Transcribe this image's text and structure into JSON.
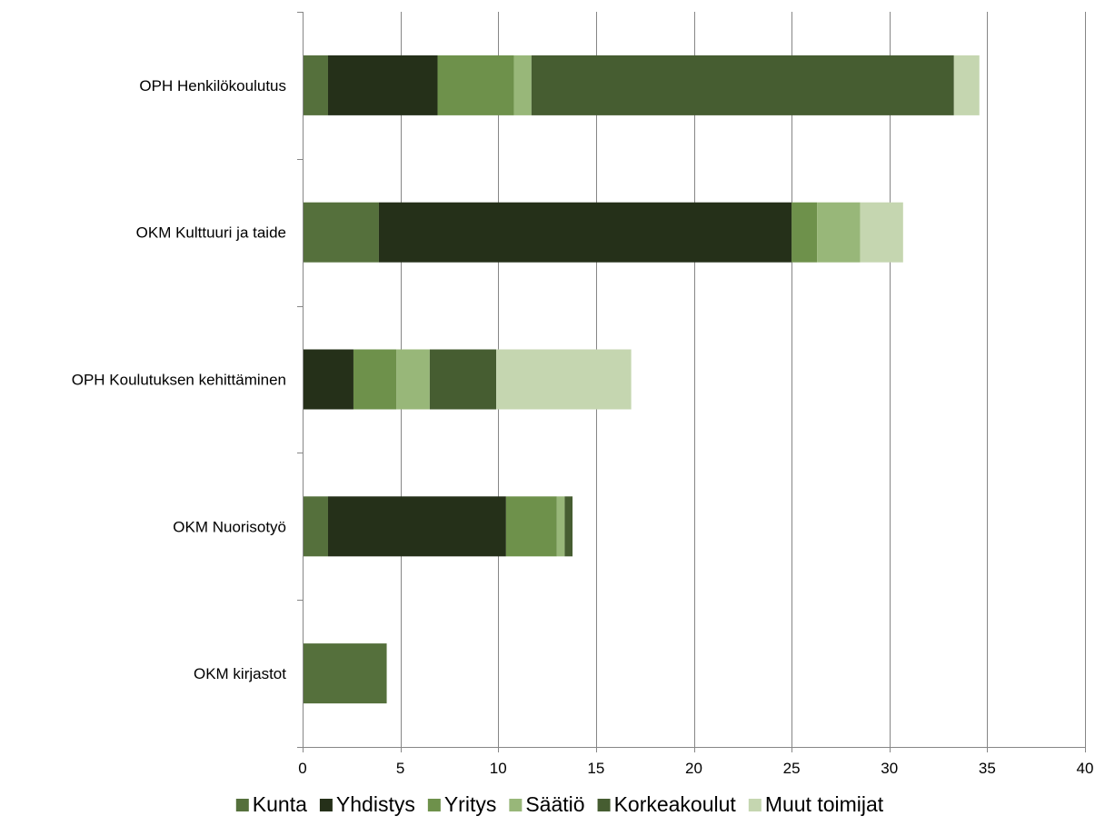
{
  "chart_data": {
    "type": "bar",
    "orientation": "horizontal",
    "stacked": true,
    "categories": [
      "OPH Henkilökoulutus",
      "OKM Kulttuuri ja taide",
      "OPH Koulutuksen kehittäminen",
      "OKM Nuorisotyö",
      "OKM kirjastot"
    ],
    "series": [
      {
        "name": "Kunta",
        "color": "#55703c",
        "values": [
          1.3,
          3.9,
          0,
          1.3,
          4.3
        ]
      },
      {
        "name": "Yhdistys",
        "color": "#253019",
        "values": [
          5.6,
          21.1,
          2.6,
          9.1,
          0
        ]
      },
      {
        "name": "Yritys",
        "color": "#6e914b",
        "values": [
          3.9,
          1.3,
          2.2,
          2.6,
          0
        ]
      },
      {
        "name": "Säätiö",
        "color": "#98b779",
        "values": [
          0.9,
          2.2,
          1.7,
          0.4,
          0
        ]
      },
      {
        "name": "Korkeakoulut",
        "color": "#465d31",
        "values": [
          21.6,
          0,
          3.4,
          0.4,
          0
        ]
      },
      {
        "name": "Muut toimijat",
        "color": "#c5d6b0",
        "values": [
          1.3,
          2.2,
          6.9,
          0,
          0
        ]
      }
    ],
    "xticks": [
      "0",
      "5",
      "10",
      "15",
      "20",
      "25",
      "30",
      "35",
      "40"
    ],
    "xlim": [
      0,
      40
    ],
    "title": "",
    "xlabel": "",
    "ylabel": "",
    "grid": "vertical",
    "legend_position": "bottom"
  }
}
